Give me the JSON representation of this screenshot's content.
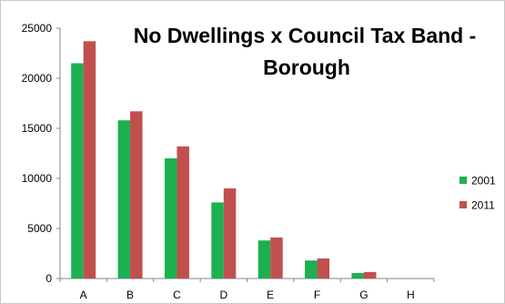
{
  "chart_data": {
    "type": "bar",
    "title_line1": "No  Dwellings x Council Tax Band -",
    "title_line2": "Borough",
    "categories": [
      "A",
      "B",
      "C",
      "D",
      "E",
      "F",
      "G",
      "H"
    ],
    "series": [
      {
        "name": "2001",
        "color": "#1db050",
        "values": [
          21500,
          15800,
          12000,
          7600,
          3800,
          1800,
          550,
          0
        ]
      },
      {
        "name": "2011",
        "color": "#c0504d",
        "values": [
          23700,
          16700,
          13200,
          9000,
          4100,
          2000,
          650,
          0
        ]
      }
    ],
    "yticks": [
      0,
      5000,
      10000,
      15000,
      20000,
      25000
    ],
    "ytick_labels": [
      "0",
      "5000",
      "10000",
      "15000",
      "20000",
      "25000"
    ],
    "ylim": [
      0,
      25000
    ],
    "xlabel": "",
    "ylabel": "",
    "legend_position": "right",
    "grid": false
  }
}
